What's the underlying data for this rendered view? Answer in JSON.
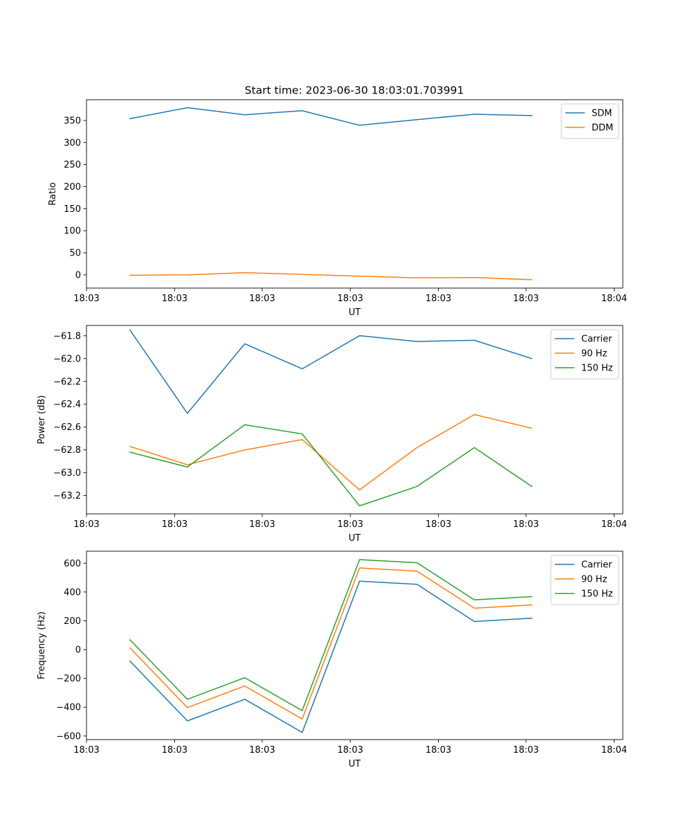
{
  "figure": {
    "title": "Start time: 2023-06-30 18:03:01.703991"
  },
  "chart_data": [
    {
      "type": "line",
      "xlabel": "UT",
      "ylabel": "Ratio",
      "xlim": [
        0,
        9.25
      ],
      "xticks": [
        0,
        1.52,
        3.03,
        4.55,
        6.07,
        7.58,
        9.1
      ],
      "xtick_labels": [
        "18:03",
        "18:03",
        "18:03",
        "18:03",
        "18:03",
        "18:03",
        "18:04"
      ],
      "ylim": [
        -30,
        397
      ],
      "yticks": [
        0,
        50,
        100,
        150,
        200,
        250,
        300,
        350
      ],
      "grid": false,
      "legend": "top-right",
      "x": [
        0.75,
        1.74,
        2.73,
        3.72,
        4.71,
        5.7,
        6.69,
        7.68
      ],
      "series": [
        {
          "name": "SDM",
          "color": "#1f77b4",
          "values": [
            354,
            379,
            363,
            372,
            339,
            352,
            364,
            361
          ]
        },
        {
          "name": "DDM",
          "color": "#ff7f0e",
          "values": [
            -1,
            0,
            5,
            1,
            -3,
            -7,
            -6,
            -11
          ]
        }
      ]
    },
    {
      "type": "line",
      "xlabel": "UT",
      "ylabel": "Power (dB)",
      "xlim": [
        0,
        9.25
      ],
      "xticks": [
        0,
        1.52,
        3.03,
        4.55,
        6.07,
        7.58,
        9.1
      ],
      "xtick_labels": [
        "18:03",
        "18:03",
        "18:03",
        "18:03",
        "18:03",
        "18:03",
        "18:04"
      ],
      "ylim": [
        -63.36,
        -61.71
      ],
      "yticks": [
        -63.2,
        -63.0,
        -62.8,
        -62.6,
        -62.4,
        -62.2,
        -62.0,
        -61.8
      ],
      "ytick_labels": [
        "−63.2",
        "−63.0",
        "−62.8",
        "−62.6",
        "−62.4",
        "−62.2",
        "−62.0",
        "−61.8"
      ],
      "grid": false,
      "legend": "top-right",
      "x": [
        0.75,
        1.74,
        2.73,
        3.72,
        4.71,
        5.7,
        6.69,
        7.68
      ],
      "series": [
        {
          "name": "Carrier",
          "color": "#1f77b4",
          "values": [
            -61.75,
            -62.48,
            -61.87,
            -62.09,
            -61.8,
            -61.85,
            -61.84,
            -62.0
          ]
        },
        {
          "name": "90 Hz",
          "color": "#ff7f0e",
          "values": [
            -62.77,
            -62.93,
            -62.8,
            -62.71,
            -63.15,
            -62.78,
            -62.49,
            -62.61
          ]
        },
        {
          "name": "150 Hz",
          "color": "#2ca02c",
          "values": [
            -62.82,
            -62.95,
            -62.58,
            -62.66,
            -63.29,
            -63.12,
            -62.78,
            -63.12
          ]
        }
      ]
    },
    {
      "type": "line",
      "xlabel": "UT",
      "ylabel": "Frequency (Hz)",
      "xlim": [
        0,
        9.25
      ],
      "xticks": [
        0,
        1.52,
        3.03,
        4.55,
        6.07,
        7.58,
        9.1
      ],
      "xtick_labels": [
        "18:03",
        "18:03",
        "18:03",
        "18:03",
        "18:03",
        "18:03",
        "18:04"
      ],
      "ylim": [
        -625,
        683
      ],
      "yticks": [
        -600,
        -400,
        -200,
        0,
        200,
        400,
        600
      ],
      "ytick_labels": [
        "−600",
        "−400",
        "−200",
        "0",
        "200",
        "400",
        "600"
      ],
      "grid": false,
      "legend": "top-right",
      "x": [
        0.75,
        1.74,
        2.73,
        3.72,
        4.71,
        5.7,
        6.69,
        7.68
      ],
      "series": [
        {
          "name": "Carrier",
          "color": "#1f77b4",
          "values": [
            -80,
            -495,
            -345,
            -575,
            475,
            453,
            195,
            218
          ]
        },
        {
          "name": "90 Hz",
          "color": "#ff7f0e",
          "values": [
            12,
            -403,
            -253,
            -482,
            567,
            545,
            287,
            310
          ]
        },
        {
          "name": "150 Hz",
          "color": "#2ca02c",
          "values": [
            68,
            -345,
            -195,
            -424,
            625,
            603,
            345,
            368
          ]
        }
      ]
    }
  ]
}
